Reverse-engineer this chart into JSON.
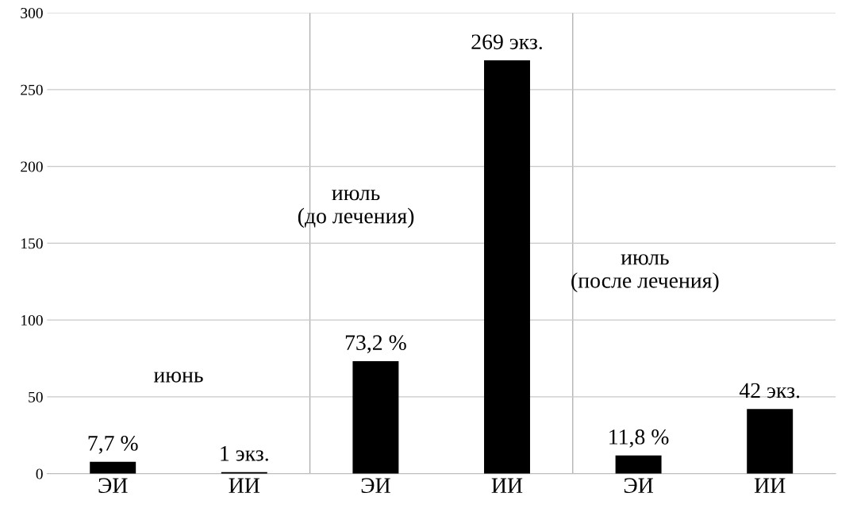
{
  "chart_data": {
    "type": "bar",
    "categories": [
      "ЭИ",
      "ИИ",
      "ЭИ",
      "ИИ",
      "ЭИ",
      "ИИ"
    ],
    "values": [
      7.7,
      1,
      73.2,
      269,
      11.8,
      42
    ],
    "color": "#000000",
    "value_labels": [
      "7,7 %",
      "1 экз.",
      "73,2 %",
      "269 экз.",
      "11,8 %",
      "42 экз."
    ],
    "annotations": [
      "июнь",
      "июль\n(до лечения)",
      "июль\n(после лечения)"
    ],
    "ylim": [
      0,
      300
    ],
    "yticks": [
      0,
      50,
      100,
      150,
      200,
      250,
      300
    ],
    "grid": "y"
  }
}
